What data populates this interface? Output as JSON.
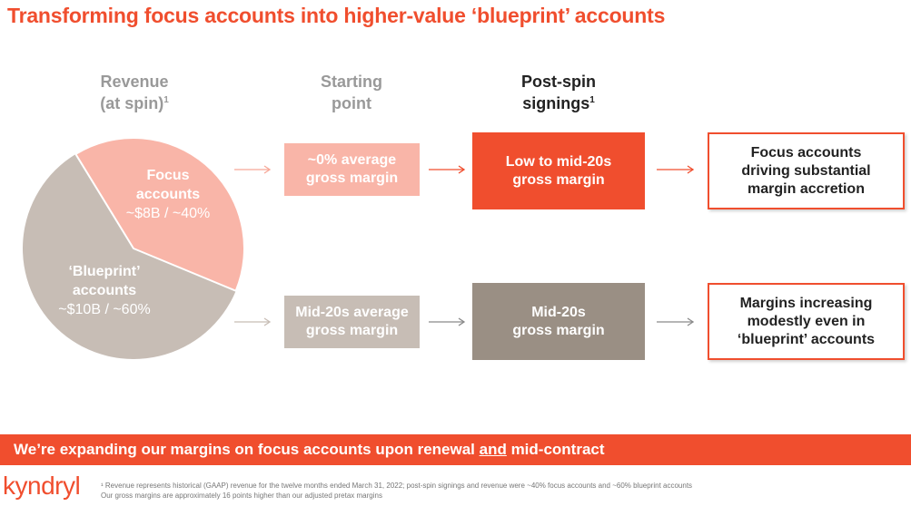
{
  "title": "Transforming focus accounts into higher-value ‘blueprint’ accounts",
  "headers": {
    "revenue": [
      "Revenue",
      "(at spin)"
    ],
    "revenue_sup": "1",
    "starting": [
      "Starting",
      "point"
    ],
    "post": [
      "Post-spin",
      "signings"
    ],
    "post_sup": "1"
  },
  "revenue": {
    "focus": {
      "line1": "Focus",
      "line2": "accounts",
      "value": "~$8B / ~40%",
      "share": 0.4,
      "color": "#f9b5a8"
    },
    "blueprint": {
      "line1": "‘Blueprint’",
      "line2": "accounts",
      "value": "~$10B / ~60%",
      "share": 0.6,
      "color": "#c7bdb5"
    }
  },
  "starting_point": {
    "focus": [
      "~0% average",
      "gross margin"
    ],
    "blueprint": [
      "Mid-20s average",
      "gross margin"
    ]
  },
  "post_spin": {
    "focus": [
      "Low to mid-20s",
      "gross margin"
    ],
    "blueprint": [
      "Mid-20s",
      "gross margin"
    ]
  },
  "outcome": {
    "focus": [
      "Focus accounts",
      "driving substantial",
      "margin accretion"
    ],
    "blueprint": [
      "Margins increasing",
      "modestly even in",
      "‘blueprint’ accounts"
    ]
  },
  "banner": {
    "before": "We’re expanding our margins on focus accounts upon renewal ",
    "underlined": "and",
    "after": " mid-contract"
  },
  "logo": "kyndryl",
  "footnotes": [
    "¹ Revenue represents historical (GAAP) revenue for the twelve months ended March 31, 2022; post-spin signings and revenue were ~40% focus accounts and ~60% blueprint accounts",
    "Our gross margins are approximately 16 points higher than our adjusted pretax margins"
  ],
  "colors": {
    "accent": "#f04e2e",
    "focus_light": "#f9b5a8",
    "blueprint_light": "#c7bdb5",
    "blueprint_dark": "#9a8f84"
  }
}
